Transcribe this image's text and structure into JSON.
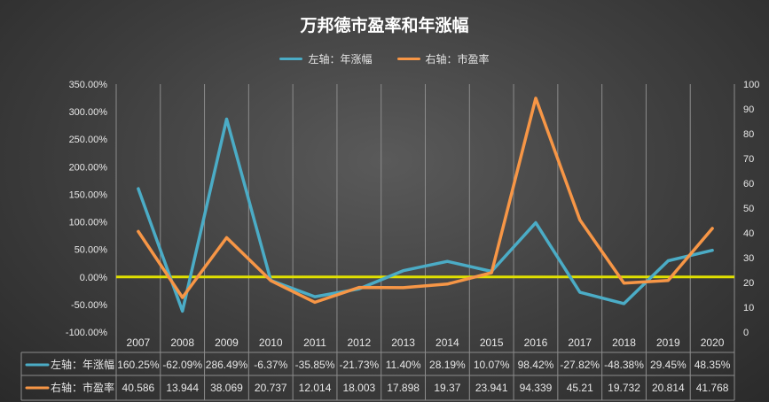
{
  "chart_data": {
    "type": "line",
    "title": "万邦德市盈率和年涨幅",
    "categories": [
      "2007",
      "2008",
      "2009",
      "2010",
      "2011",
      "2012",
      "2013",
      "2014",
      "2015",
      "2016",
      "2017",
      "2018",
      "2019",
      "2020"
    ],
    "series": [
      {
        "name": "左轴：年涨幅",
        "axis": "left",
        "color": "#4bacc6",
        "values": [
          160.25,
          -62.09,
          286.49,
          -6.37,
          -35.85,
          -21.73,
          11.4,
          28.19,
          10.07,
          98.42,
          -27.82,
          -48.38,
          29.45,
          48.35
        ],
        "labels": [
          "160.25%",
          "-62.09%",
          "286.49%",
          "-6.37%",
          "-35.85%",
          "-21.73%",
          "11.40%",
          "28.19%",
          "10.07%",
          "98.42%",
          "-27.82%",
          "-48.38%",
          "29.45%",
          "48.35%"
        ]
      },
      {
        "name": "右轴：市盈率",
        "axis": "right",
        "color": "#f79646",
        "values": [
          40.586,
          13.944,
          38.069,
          20.737,
          12.014,
          18.003,
          17.898,
          19.37,
          23.941,
          94.339,
          45.21,
          19.732,
          20.814,
          41.768
        ],
        "labels": [
          "40.586",
          "13.944",
          "38.069",
          "20.737",
          "12.014",
          "18.003",
          "17.898",
          "19.37",
          "23.941",
          "94.339",
          "45.21",
          "19.732",
          "20.814",
          "41.768"
        ]
      }
    ],
    "y_left": {
      "range": [
        -100,
        350
      ],
      "ticks": [
        350,
        300,
        250,
        200,
        150,
        100,
        50,
        0,
        -50,
        -100
      ],
      "tick_labels": [
        "350.00%",
        "300.00%",
        "250.00%",
        "200.00%",
        "150.00%",
        "100.00%",
        "50.00%",
        "0.00%",
        "-50.00%",
        "-100.00%"
      ]
    },
    "y_right": {
      "range": [
        0,
        100
      ],
      "ticks": [
        100,
        90,
        80,
        70,
        60,
        50,
        40,
        30,
        20,
        10,
        0
      ],
      "tick_labels": [
        "100",
        "90",
        "80",
        "70",
        "60",
        "50",
        "40",
        "30",
        "20",
        "10",
        "0"
      ]
    },
    "zero_line_color": "#e0e000",
    "grid": "vertical",
    "legend_position": "top-center",
    "data_table": true
  }
}
